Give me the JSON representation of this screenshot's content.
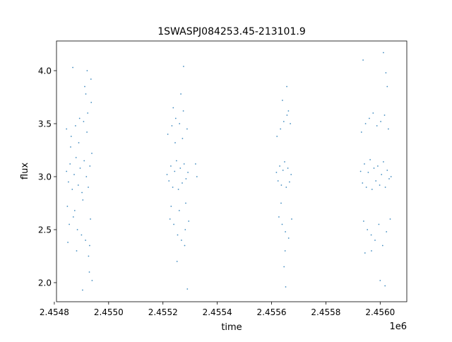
{
  "chart_data": {
    "type": "scatter",
    "title": "1SWASPJ084253.45-213101.9",
    "xlabel": "time",
    "ylabel": "flux",
    "x_offset_label": "1e6",
    "xlim": [
      2454808,
      2456098
    ],
    "ylim": [
      1.82,
      4.28
    ],
    "x_ticks": [
      2454800,
      2455000,
      2455200,
      2455400,
      2455600,
      2455800,
      2456000
    ],
    "x_tick_labels": [
      "2.4548",
      "2.4550",
      "2.4552",
      "2.4554",
      "2.4556",
      "2.4558",
      "2.4560"
    ],
    "y_ticks": [
      2.0,
      2.5,
      3.0,
      3.5,
      4.0
    ],
    "y_tick_labels": [
      "2.0",
      "2.5",
      "3.0",
      "3.5",
      "4.0"
    ],
    "grid": false,
    "legend": "none",
    "marker_color": "#1f77b4",
    "series": [
      {
        "x": [
          2454845,
          2454852,
          2454858,
          2454866,
          2454873,
          2454880,
          2454888,
          2454895,
          2454902,
          2454910,
          2454918,
          2454925,
          2454931,
          2454938,
          2454845,
          2454855,
          2454862,
          2454870,
          2454878,
          2454885,
          2454893,
          2454900,
          2454908,
          2454915,
          2454923,
          2454930,
          2454936,
          2454848,
          2454860,
          2454875,
          2454890,
          2454905,
          2454920,
          2454933,
          2454912,
          2454926,
          2454935,
          2454929,
          2454921,
          2454882,
          2454868,
          2454850,
          2454939,
          2454916,
          2454904
        ],
        "y": [
          3.05,
          2.95,
          3.12,
          2.88,
          3.02,
          3.18,
          2.92,
          3.08,
          2.85,
          3.15,
          3.0,
          2.9,
          3.1,
          3.22,
          3.45,
          2.55,
          3.38,
          2.62,
          3.48,
          2.5,
          3.55,
          2.45,
          3.52,
          2.4,
          3.6,
          2.35,
          3.7,
          2.72,
          3.28,
          2.68,
          3.32,
          2.78,
          3.42,
          2.6,
          3.85,
          2.25,
          3.92,
          2.1,
          4.0,
          2.3,
          4.03,
          2.38,
          2.02,
          3.78,
          1.93
        ]
      },
      {
        "x": [
          2455215,
          2455222,
          2455229,
          2455236,
          2455243,
          2455250,
          2455257,
          2455264,
          2455271,
          2455278,
          2455285,
          2455292,
          2455218,
          2455226,
          2455233,
          2455240,
          2455247,
          2455254,
          2455261,
          2455268,
          2455275,
          2455282,
          2455289,
          2455295,
          2455320,
          2455325,
          2455230,
          2455245,
          2455260,
          2455272,
          2455284,
          2455238,
          2455266,
          2455280,
          2455252,
          2455276,
          2455290
        ],
        "y": [
          3.02,
          2.96,
          3.1,
          2.9,
          3.05,
          3.15,
          2.88,
          3.08,
          2.94,
          3.12,
          2.98,
          3.04,
          3.4,
          2.6,
          3.48,
          2.55,
          3.55,
          2.45,
          3.5,
          2.4,
          3.62,
          2.5,
          3.45,
          2.58,
          3.12,
          3.0,
          2.72,
          3.32,
          2.68,
          3.36,
          2.75,
          3.65,
          3.78,
          2.35,
          2.2,
          4.04,
          1.94
        ]
      },
      {
        "x": [
          2455618,
          2455624,
          2455630,
          2455636,
          2455642,
          2455648,
          2455654,
          2455660,
          2455666,
          2455672,
          2455620,
          2455627,
          2455633,
          2455639,
          2455645,
          2455651,
          2455657,
          2455663,
          2455669,
          2455674,
          2455640,
          2455650,
          2455656,
          2455646,
          2455662,
          2455652,
          2455635
        ],
        "y": [
          3.04,
          2.96,
          3.1,
          2.92,
          3.06,
          3.14,
          2.9,
          3.08,
          2.95,
          3.02,
          3.38,
          2.62,
          3.45,
          2.55,
          3.52,
          2.48,
          3.58,
          2.42,
          3.5,
          2.6,
          3.72,
          2.3,
          3.85,
          2.15,
          3.62,
          1.96,
          2.75
        ]
      },
      {
        "x": [
          2455928,
          2455935,
          2455942,
          2455949,
          2455956,
          2455963,
          2455970,
          2455977,
          2455984,
          2455991,
          2455998,
          2456005,
          2456012,
          2456019,
          2456026,
          2456033,
          2456040,
          2455931,
          2455939,
          2455946,
          2455953,
          2455960,
          2455967,
          2455974,
          2455981,
          2455988,
          2455995,
          2456002,
          2456009,
          2456016,
          2456023,
          2456030,
          2456037,
          2455937,
          2456012,
          2456026,
          2456000,
          2455968,
          2455944,
          2456021,
          2456018
        ],
        "y": [
          3.05,
          2.94,
          3.12,
          2.9,
          3.04,
          3.16,
          2.88,
          3.08,
          2.96,
          3.1,
          2.92,
          3.02,
          3.14,
          2.9,
          3.06,
          2.98,
          3.0,
          3.42,
          2.58,
          3.5,
          2.5,
          3.55,
          2.45,
          3.6,
          2.4,
          3.48,
          2.55,
          3.52,
          2.35,
          3.58,
          2.48,
          3.45,
          2.6,
          4.1,
          4.17,
          3.85,
          2.02,
          2.3,
          2.28,
          3.98,
          1.97
        ]
      }
    ]
  }
}
